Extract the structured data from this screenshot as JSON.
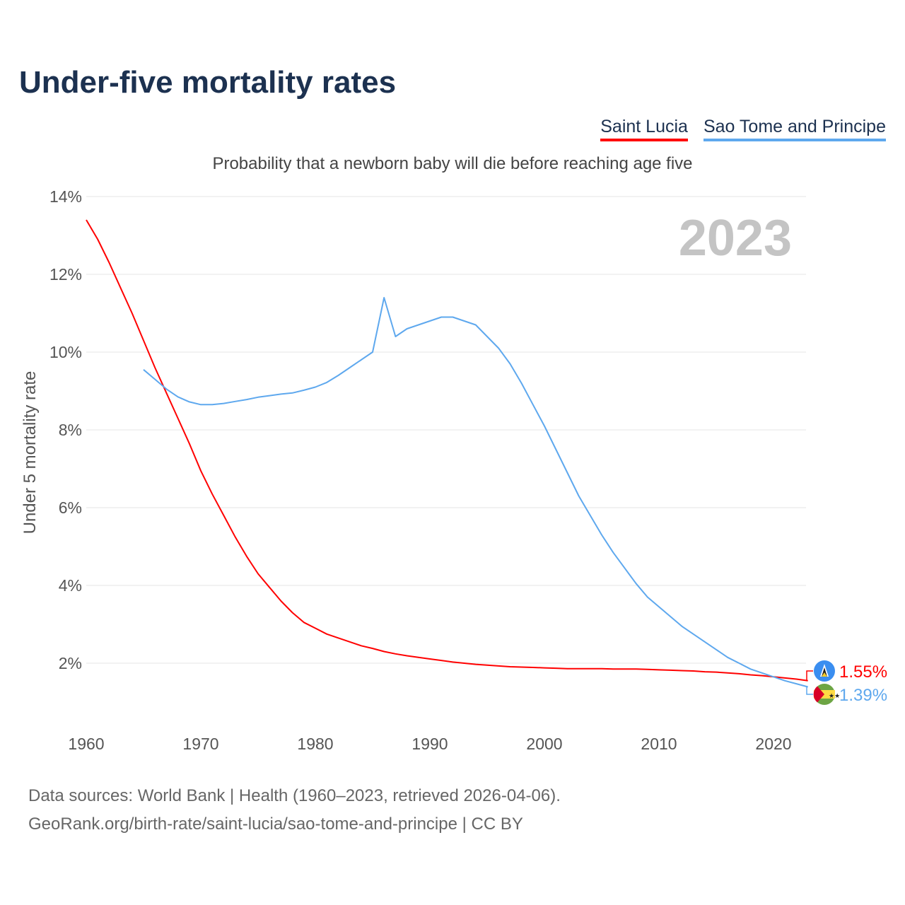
{
  "title": "Under-five mortality rates",
  "subtitle": "Probability that a newborn baby will die before reaching age five",
  "sources": [
    "Data sources: World Bank | Health (1960–2023, retrieved 2026-04-06).",
    "GeoRank.org/birth-rate/saint-lucia/sao-tome-and-principe | CC BY"
  ],
  "chart_data": {
    "type": "line",
    "title": "Under-five mortality rates",
    "ylabel": "Under 5 mortality rate",
    "xlabel": "",
    "year_watermark": "2023",
    "xlim": [
      1960,
      2023
    ],
    "ylim": [
      0,
      14
    ],
    "xticks": [
      "1960",
      "1970",
      "1980",
      "1990",
      "2000",
      "2010",
      "2020"
    ],
    "yticks": [
      "2%",
      "4%",
      "6%",
      "8%",
      "10%",
      "12%",
      "14%"
    ],
    "grid": true,
    "legend_placement": "top-right",
    "series": [
      {
        "name": "Saint Lucia",
        "color": "#ff0000",
        "start": 1960,
        "end_label": "1.55%",
        "values": [
          13.4,
          12.9,
          12.3,
          11.65,
          11.0,
          10.3,
          9.6,
          8.95,
          8.3,
          7.65,
          6.95,
          6.35,
          5.8,
          5.25,
          4.75,
          4.3,
          3.95,
          3.6,
          3.3,
          3.05,
          2.9,
          2.75,
          2.65,
          2.55,
          2.45,
          2.38,
          2.3,
          2.24,
          2.19,
          2.15,
          2.11,
          2.07,
          2.03,
          2.0,
          1.97,
          1.95,
          1.93,
          1.91,
          1.9,
          1.89,
          1.88,
          1.87,
          1.86,
          1.86,
          1.86,
          1.86,
          1.85,
          1.85,
          1.85,
          1.84,
          1.83,
          1.82,
          1.81,
          1.8,
          1.78,
          1.77,
          1.75,
          1.73,
          1.7,
          1.68,
          1.65,
          1.62,
          1.59,
          1.55
        ]
      },
      {
        "name": "Sao Tome and Principe",
        "color": "#5ea8ee",
        "start": 1965,
        "end_label": "1.39%",
        "values": [
          9.55,
          9.3,
          9.05,
          8.85,
          8.72,
          8.65,
          8.65,
          8.68,
          8.73,
          8.78,
          8.84,
          8.88,
          8.92,
          8.95,
          9.02,
          9.1,
          9.22,
          9.4,
          9.6,
          9.8,
          10.0,
          11.4,
          10.4,
          10.6,
          10.7,
          10.8,
          10.9,
          10.9,
          10.8,
          10.7,
          10.4,
          10.1,
          9.7,
          9.2,
          8.65,
          8.1,
          7.5,
          6.9,
          6.3,
          5.8,
          5.3,
          4.85,
          4.45,
          4.05,
          3.7,
          3.45,
          3.2,
          2.95,
          2.75,
          2.55,
          2.35,
          2.15,
          2.0,
          1.85,
          1.75,
          1.65,
          1.55,
          1.47,
          1.39
        ]
      }
    ]
  }
}
